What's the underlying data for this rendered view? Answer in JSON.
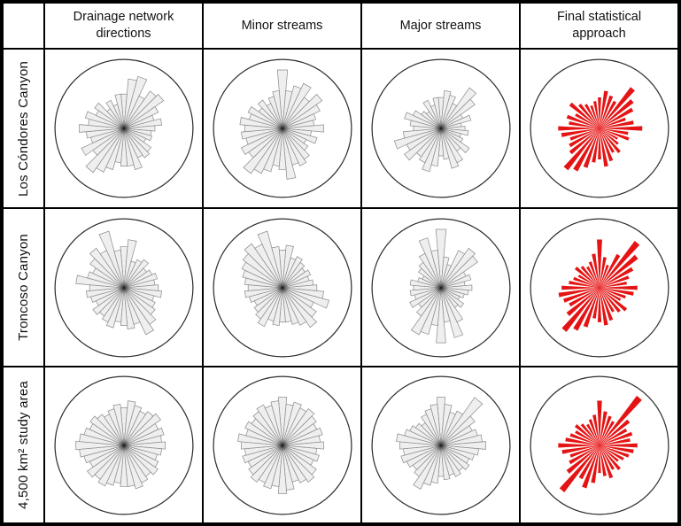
{
  "figure": {
    "corner_cell": "",
    "description_colors": {
      "petal_fill_gray": "#efefef",
      "petal_stroke_gray": "#8f8f8f",
      "petal_fill_red": "#e41414",
      "circle_stroke": "#2d2d2d",
      "grid_line": "#000000"
    }
  },
  "chart_data": {
    "type": "bar",
    "variant": "rose-diagram (circular direction histogram), 12 roses in a 3x4 table",
    "columns": [
      "Drainage network directions",
      "Minor streams",
      "Major streams",
      "Final statistical approach"
    ],
    "rows": [
      "Los Cóndores Canyon",
      "Troncoso Canyon",
      "4,500 km² study area"
    ],
    "orientation": "first sector centered at North (0°), subsequent sectors clockwise",
    "sector_width_deg": 10,
    "num_sectors": 36,
    "radial_scale": "values are petal length as fraction of outer circle radius",
    "legend_position": "none",
    "grid": false,
    "colors": {
      "petal_fill": "#efefef",
      "petal_stroke": "#8f8f8f",
      "final_petal_fill": "#e41414",
      "circle_stroke": "#2d2d2d"
    },
    "petal_half_angle_deg_gray": 5,
    "petal_half_angle_deg_final": 3.1,
    "roses": [
      {
        "row": "Los Cóndores Canyon",
        "column": "Drainage network directions",
        "style": "gray",
        "values": [
          0.5,
          0.72,
          0.78,
          0.52,
          0.66,
          0.7,
          0.55,
          0.45,
          0.55,
          0.45,
          0.4,
          0.42,
          0.35,
          0.48,
          0.52,
          0.47,
          0.62,
          0.55,
          0.55,
          0.5,
          0.62,
          0.7,
          0.78,
          0.55,
          0.68,
          0.5,
          0.55,
          0.65,
          0.52,
          0.58,
          0.45,
          0.52,
          0.35,
          0.45,
          0.36,
          0.5
        ]
      },
      {
        "row": "Los Cóndores Canyon",
        "column": "Minor streams",
        "style": "gray",
        "values": [
          0.85,
          0.55,
          0.64,
          0.72,
          0.55,
          0.7,
          0.6,
          0.5,
          0.46,
          0.6,
          0.42,
          0.52,
          0.38,
          0.45,
          0.55,
          0.6,
          0.55,
          0.74,
          0.6,
          0.55,
          0.65,
          0.72,
          0.8,
          0.6,
          0.66,
          0.55,
          0.6,
          0.55,
          0.62,
          0.5,
          0.55,
          0.42,
          0.5,
          0.4,
          0.48,
          0.55
        ]
      },
      {
        "row": "Los Cóndores Canyon",
        "column": "Major streams",
        "style": "gray",
        "values": [
          0.45,
          0.55,
          0.5,
          0.4,
          0.72,
          0.6,
          0.35,
          0.45,
          0.3,
          0.35,
          0.4,
          0.3,
          0.35,
          0.5,
          0.4,
          0.55,
          0.6,
          0.45,
          0.4,
          0.55,
          0.65,
          0.55,
          0.5,
          0.65,
          0.55,
          0.7,
          0.55,
          0.4,
          0.45,
          0.55,
          0.45,
          0.35,
          0.3,
          0.45,
          0.35,
          0.45
        ]
      },
      {
        "row": "Los Cóndores Canyon",
        "column": "Final statistical approach",
        "style": "final",
        "values": [
          0.45,
          0.55,
          0.5,
          0.45,
          0.75,
          0.62,
          0.55,
          0.4,
          0.5,
          0.62,
          0.42,
          0.45,
          0.3,
          0.35,
          0.45,
          0.4,
          0.5,
          0.56,
          0.45,
          0.5,
          0.6,
          0.7,
          0.76,
          0.55,
          0.5,
          0.45,
          0.56,
          0.6,
          0.45,
          0.5,
          0.4,
          0.55,
          0.45,
          0.4,
          0.35,
          0.4
        ]
      },
      {
        "row": "Troncoso Canyon",
        "column": "Drainage network directions",
        "style": "gray",
        "values": [
          0.6,
          0.7,
          0.4,
          0.45,
          0.5,
          0.4,
          0.45,
          0.5,
          0.45,
          0.5,
          0.55,
          0.45,
          0.5,
          0.55,
          0.65,
          0.75,
          0.55,
          0.6,
          0.55,
          0.5,
          0.6,
          0.55,
          0.5,
          0.55,
          0.45,
          0.5,
          0.55,
          0.5,
          0.7,
          0.55,
          0.5,
          0.6,
          0.7,
          0.6,
          0.85,
          0.55
        ]
      },
      {
        "row": "Troncoso Canyon",
        "column": "Minor streams",
        "style": "gray",
        "values": [
          0.55,
          0.62,
          0.45,
          0.5,
          0.45,
          0.4,
          0.45,
          0.4,
          0.45,
          0.5,
          0.6,
          0.7,
          0.5,
          0.6,
          0.7,
          0.6,
          0.55,
          0.5,
          0.5,
          0.55,
          0.5,
          0.62,
          0.55,
          0.5,
          0.45,
          0.5,
          0.55,
          0.5,
          0.55,
          0.6,
          0.65,
          0.7,
          0.78,
          0.7,
          0.85,
          0.6
        ]
      },
      {
        "row": "Troncoso Canyon",
        "column": "Major streams",
        "style": "gray",
        "values": [
          0.85,
          0.45,
          0.35,
          0.6,
          0.7,
          0.65,
          0.4,
          0.45,
          0.35,
          0.45,
          0.4,
          0.35,
          0.3,
          0.4,
          0.35,
          0.55,
          0.75,
          0.5,
          0.8,
          0.55,
          0.7,
          0.75,
          0.5,
          0.4,
          0.5,
          0.4,
          0.45,
          0.4,
          0.45,
          0.35,
          0.3,
          0.4,
          0.45,
          0.55,
          0.75,
          0.55
        ]
      },
      {
        "row": "Troncoso Canyon",
        "column": "Final statistical approach",
        "style": "final",
        "values": [
          0.7,
          0.45,
          0.35,
          0.55,
          0.85,
          0.7,
          0.55,
          0.45,
          0.4,
          0.55,
          0.5,
          0.4,
          0.35,
          0.5,
          0.45,
          0.4,
          0.5,
          0.55,
          0.5,
          0.45,
          0.6,
          0.7,
          0.8,
          0.6,
          0.5,
          0.55,
          0.6,
          0.55,
          0.45,
          0.4,
          0.35,
          0.45,
          0.4,
          0.35,
          0.4,
          0.5
        ]
      },
      {
        "row": "4,500 km² study area",
        "column": "Drainage network directions",
        "style": "gray",
        "values": [
          0.55,
          0.65,
          0.6,
          0.55,
          0.6,
          0.65,
          0.55,
          0.6,
          0.55,
          0.6,
          0.55,
          0.5,
          0.55,
          0.6,
          0.55,
          0.6,
          0.65,
          0.6,
          0.6,
          0.55,
          0.6,
          0.65,
          0.6,
          0.65,
          0.55,
          0.6,
          0.65,
          0.7,
          0.65,
          0.6,
          0.55,
          0.6,
          0.55,
          0.5,
          0.55,
          0.6
        ]
      },
      {
        "row": "4,500 km² study area",
        "column": "Minor streams",
        "style": "gray",
        "values": [
          0.7,
          0.6,
          0.65,
          0.6,
          0.65,
          0.6,
          0.55,
          0.6,
          0.55,
          0.6,
          0.5,
          0.55,
          0.5,
          0.6,
          0.65,
          0.6,
          0.55,
          0.65,
          0.7,
          0.6,
          0.65,
          0.6,
          0.65,
          0.6,
          0.55,
          0.6,
          0.55,
          0.6,
          0.65,
          0.55,
          0.6,
          0.55,
          0.6,
          0.65,
          0.6,
          0.65
        ]
      },
      {
        "row": "4,500 km² study area",
        "column": "Major streams",
        "style": "gray",
        "values": [
          0.7,
          0.6,
          0.5,
          0.55,
          0.85,
          0.6,
          0.5,
          0.55,
          0.6,
          0.65,
          0.55,
          0.5,
          0.45,
          0.5,
          0.45,
          0.5,
          0.45,
          0.5,
          0.45,
          0.55,
          0.6,
          0.7,
          0.55,
          0.5,
          0.55,
          0.6,
          0.55,
          0.6,
          0.65,
          0.55,
          0.5,
          0.45,
          0.4,
          0.5,
          0.55,
          0.6
        ]
      },
      {
        "row": "4,500 km² study area",
        "column": "Final statistical approach",
        "style": "final",
        "values": [
          0.65,
          0.5,
          0.45,
          0.4,
          0.9,
          0.55,
          0.45,
          0.5,
          0.45,
          0.55,
          0.5,
          0.45,
          0.4,
          0.35,
          0.45,
          0.4,
          0.5,
          0.45,
          0.4,
          0.55,
          0.65,
          0.55,
          0.85,
          0.6,
          0.5,
          0.45,
          0.55,
          0.6,
          0.5,
          0.45,
          0.4,
          0.45,
          0.4,
          0.35,
          0.4,
          0.45
        ]
      }
    ]
  }
}
